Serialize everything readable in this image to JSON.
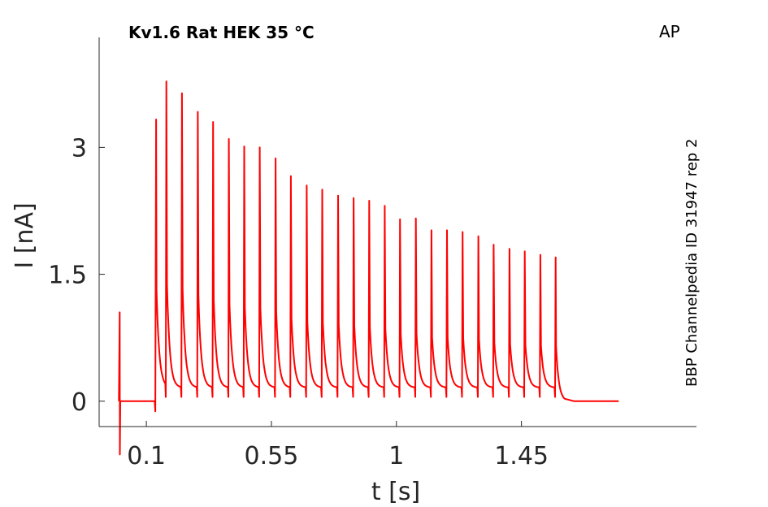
{
  "chart_data": {
    "type": "line",
    "title": "Kv1.6  Rat  HEK  35 °C",
    "corner_label": "AP",
    "side_label": "BBP Channelpedia ID 31947 rep 2",
    "xlabel": "t [s]",
    "ylabel": "I [nA]",
    "xlim": [
      -0.07,
      2.08
    ],
    "ylim": [
      -0.3,
      4.3
    ],
    "x_ticks": [
      0.1,
      0.55,
      1,
      1.45
    ],
    "x_tick_labels": [
      "0.1",
      "0.55",
      "1",
      "1.45"
    ],
    "y_ticks": [
      0,
      1.5,
      3
    ],
    "y_tick_labels": [
      "0",
      "1.5",
      "3"
    ],
    "grid": false,
    "series": [
      {
        "color": "#ff0000",
        "baseline": 0.0,
        "artifact": {
          "t": 0.004,
          "peak": 1.05,
          "trough": -0.63
        },
        "baseline_segments": [
          [
            0.0,
            0.13
          ],
          [
            1.61,
            1.8
          ]
        ],
        "spike_times": [
          0.135,
          0.172,
          0.228,
          0.285,
          0.34,
          0.397,
          0.452,
          0.508,
          0.565,
          0.62,
          0.677,
          0.733,
          0.79,
          0.846,
          0.902,
          0.958,
          1.013,
          1.07,
          1.126,
          1.182,
          1.238,
          1.295,
          1.35,
          1.407,
          1.462,
          1.518,
          1.573
        ],
        "spike_peaks": [
          3.33,
          3.78,
          3.64,
          3.42,
          3.3,
          3.1,
          3.01,
          3.0,
          2.87,
          2.66,
          2.55,
          2.5,
          2.43,
          2.4,
          2.37,
          2.31,
          2.15,
          2.16,
          2.02,
          2.02,
          2.0,
          1.95,
          1.85,
          1.8,
          1.77,
          1.73,
          1.7
        ],
        "inter_spike_floor": 0.16
      }
    ]
  }
}
